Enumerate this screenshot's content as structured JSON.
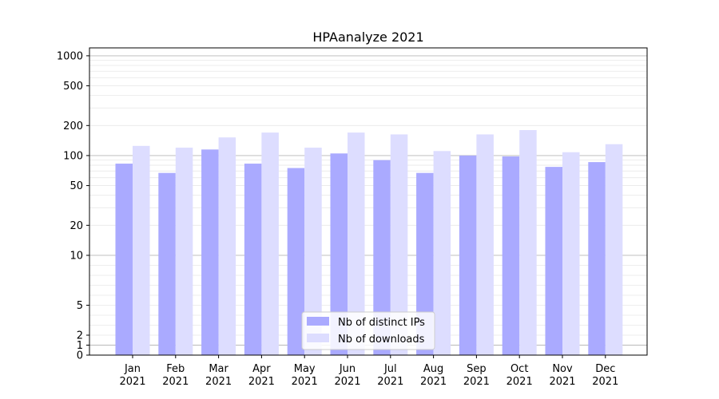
{
  "chart_data": {
    "type": "bar",
    "title": "HPAanalyze 2021",
    "xlabel": "",
    "ylabel": "",
    "yscale": "symlog",
    "ylim": [
      0,
      1200
    ],
    "y_ticks": [
      0,
      1,
      2,
      5,
      10,
      20,
      50,
      100,
      200,
      500,
      1000
    ],
    "categories": [
      "Jan\n2021",
      "Feb\n2021",
      "Mar\n2021",
      "Apr\n2021",
      "May\n2021",
      "Jun\n2021",
      "Jul\n2021",
      "Aug\n2021",
      "Sep\n2021",
      "Oct\n2021",
      "Nov\n2021",
      "Dec\n2021"
    ],
    "series": [
      {
        "name": "Nb of distinct IPs",
        "color": "#aaaaff",
        "values": [
          83,
          67,
          115,
          83,
          75,
          105,
          90,
          67,
          100,
          98,
          77,
          86
        ]
      },
      {
        "name": "Nb of downloads",
        "color": "#ddddff",
        "values": [
          125,
          120,
          152,
          170,
          120,
          170,
          163,
          111,
          163,
          180,
          108,
          130
        ]
      }
    ],
    "grid": true,
    "legend_position": "bottom-center"
  }
}
